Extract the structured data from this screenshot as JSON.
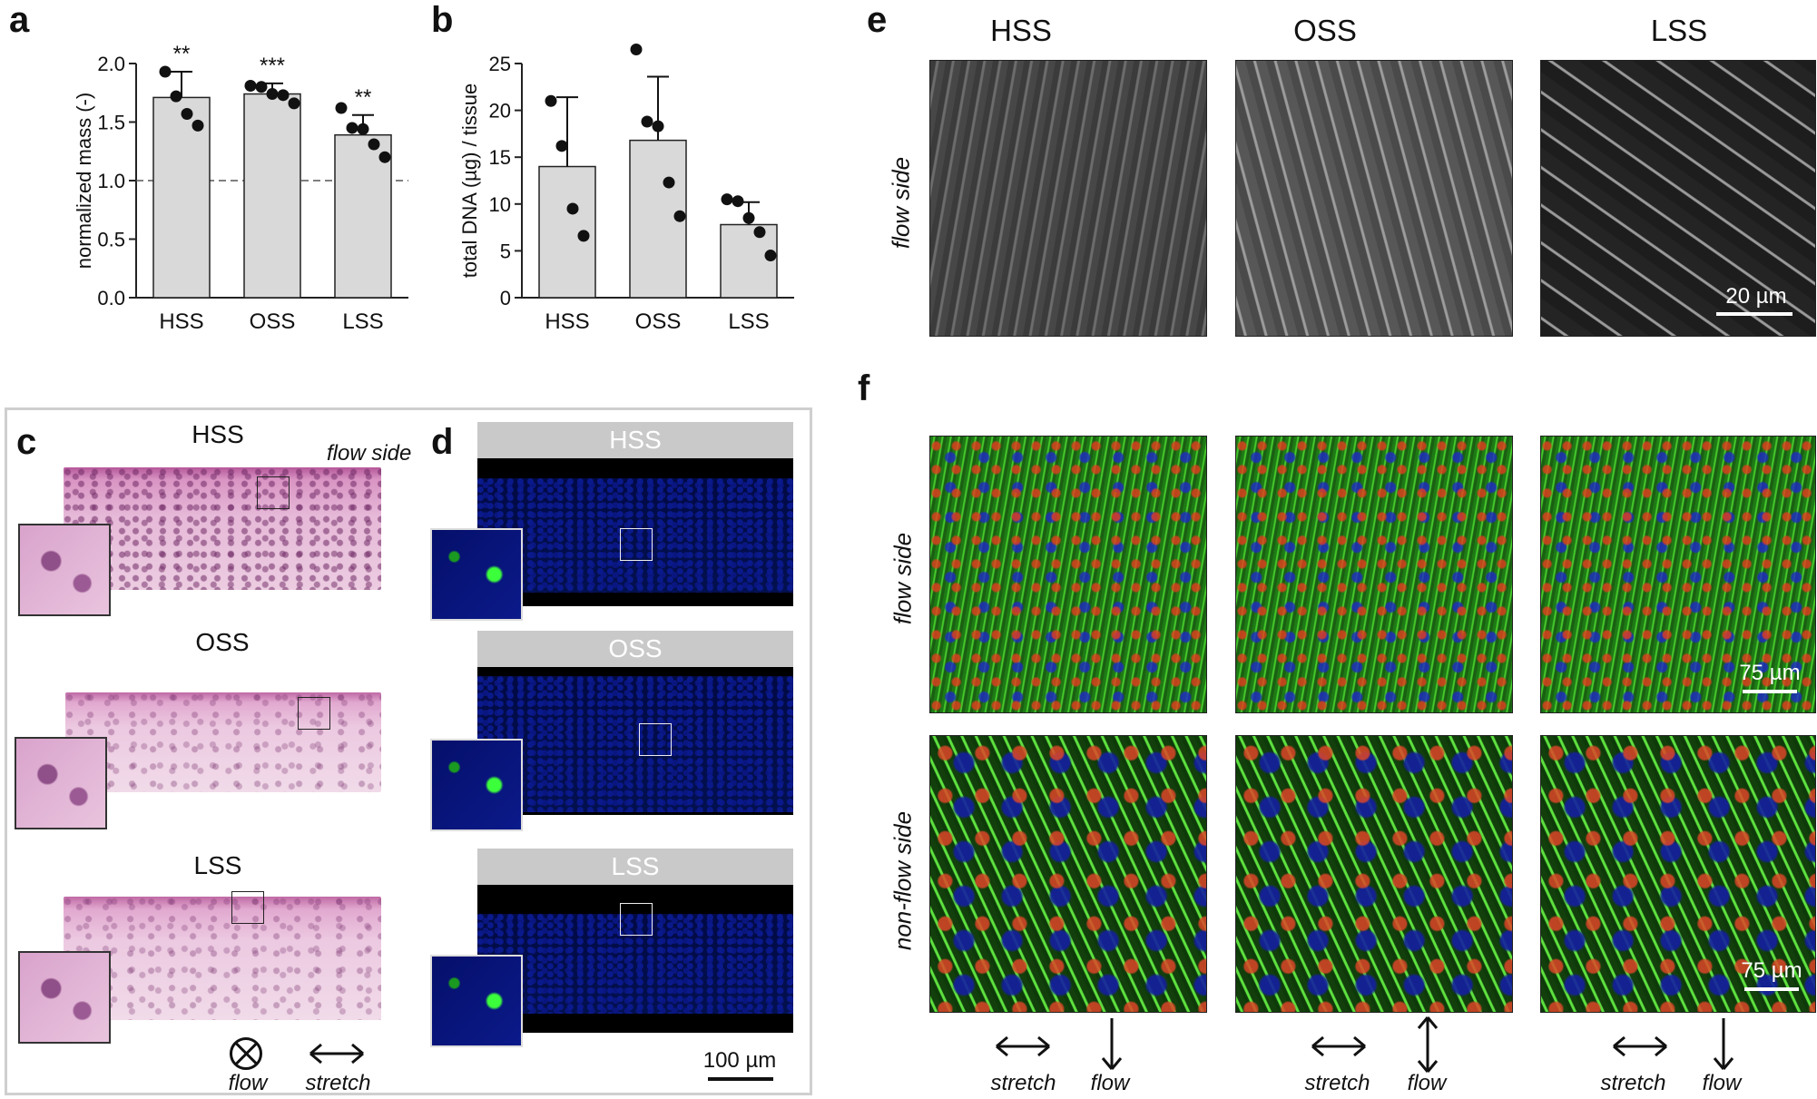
{
  "panels": {
    "a": "a",
    "b": "b",
    "c": "c",
    "d": "d",
    "e": "e",
    "f": "f"
  },
  "chart_data": [
    {
      "type": "bar",
      "panel": "a",
      "categories": [
        "HSS",
        "OSS",
        "LSS"
      ],
      "values": [
        1.71,
        1.74,
        1.39
      ],
      "errors": [
        0.22,
        0.09,
        0.17
      ],
      "points": [
        [
          1.93,
          1.72,
          1.57,
          1.47
        ],
        [
          1.81,
          1.8,
          1.74,
          1.73,
          1.66
        ],
        [
          1.62,
          1.45,
          1.44,
          1.31,
          1.2
        ]
      ],
      "significance": [
        "**",
        "***",
        "**"
      ],
      "ylabel": "normalized mass (-)",
      "ylim": [
        0,
        2.0
      ],
      "yticks": [
        "0.0",
        "0.5",
        "1.0",
        "1.5",
        "2.0"
      ],
      "reference_line": 1.0
    },
    {
      "type": "bar",
      "panel": "b",
      "categories": [
        "HSS",
        "OSS",
        "LSS"
      ],
      "values": [
        14.0,
        16.8,
        7.8
      ],
      "errors": [
        7.4,
        6.8,
        2.4
      ],
      "points": [
        [
          21.0,
          16.2,
          9.5,
          6.6
        ],
        [
          26.5,
          18.8,
          18.3,
          12.3,
          8.7
        ],
        [
          10.5,
          10.3,
          8.5,
          7.0,
          4.5
        ]
      ],
      "ylabel": "total DNA (µg) / tissue",
      "ylim": [
        0,
        25
      ],
      "yticks": [
        "0",
        "5",
        "10",
        "15",
        "20",
        "25"
      ]
    }
  ],
  "panel_c": {
    "titles": [
      "HSS",
      "OSS",
      "LSS"
    ],
    "flow_side_label": "flow side",
    "flow_label": "flow",
    "stretch_label": "stretch"
  },
  "panel_d": {
    "headers": [
      "HSS",
      "OSS",
      "LSS"
    ],
    "scalebar": "100 µm"
  },
  "panel_e": {
    "columns": [
      "HSS",
      "OSS",
      "LSS"
    ],
    "row_label": "flow side",
    "scalebar": "20 µm"
  },
  "panel_f": {
    "row_labels": [
      "flow side",
      "non-flow side"
    ],
    "scalebar_top": "75 µm",
    "scalebar_bottom": "75 µm",
    "arrows": [
      {
        "stretch": "stretch",
        "flow": "flow"
      },
      {
        "stretch": "stretch",
        "flow": "flow"
      },
      {
        "stretch": "stretch",
        "flow": "flow"
      }
    ]
  },
  "colors": {
    "bar_fill": "#d9d9d9",
    "bar_stroke": "#222222",
    "point": "#111111",
    "header_gray": "#c9c9c9"
  }
}
